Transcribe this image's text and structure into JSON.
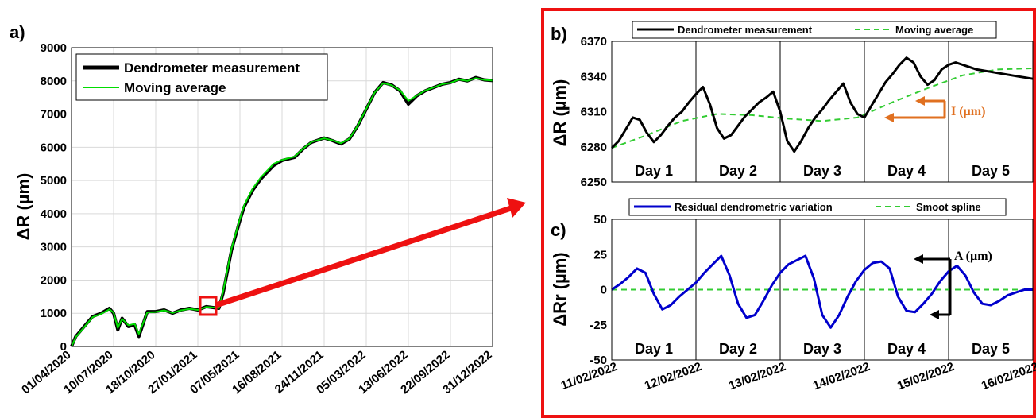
{
  "panel_labels": {
    "a": "a)",
    "b": "b)",
    "c": "c)"
  },
  "annotations": {
    "b_text": "I (µm)",
    "c_text": "A (µm)"
  },
  "colors": {
    "measurement": "#000000",
    "moving_average": "#00dd00",
    "moving_average_b": "#33cc33",
    "residual": "#0000cc",
    "spline": "#33cc33",
    "highlight": "#ee1111",
    "annotation_b": "#e07020"
  },
  "chart_data": [
    {
      "id": "a",
      "type": "line",
      "ylabel": "ΔR (µm)",
      "ylim": [
        0,
        9000
      ],
      "yticks": [
        0,
        1000,
        2000,
        3000,
        4000,
        5000,
        6000,
        7000,
        8000,
        9000
      ],
      "xtick_labels": [
        "01/04/2020",
        "10/07/2020",
        "18/10/2020",
        "27/01/2021",
        "07/05/2021",
        "16/08/2021",
        "24/11/2021",
        "05/03/2022",
        "13/06/2022",
        "22/09/2022",
        "31/12/2022"
      ],
      "grid": true,
      "legend": "top-left",
      "series": [
        {
          "name": "Dendrometer measurement",
          "x": [
            0,
            0.1,
            0.3,
            0.5,
            0.7,
            0.9,
            1.0,
            1.1,
            1.2,
            1.35,
            1.5,
            1.6,
            1.8,
            2.0,
            2.2,
            2.4,
            2.6,
            2.8,
            3.0,
            3.2,
            3.5,
            3.6,
            3.8,
            4.0,
            4.1,
            4.3,
            4.5,
            4.8,
            5.0,
            5.3,
            5.5,
            5.7,
            6.0,
            6.2,
            6.4,
            6.6,
            6.8,
            7.0,
            7.2,
            7.4,
            7.6,
            7.8,
            8.0,
            8.2,
            8.4,
            8.6,
            8.8,
            9.0,
            9.2,
            9.4,
            9.6,
            9.8,
            10.0
          ],
          "y": [
            0,
            300,
            600,
            900,
            1000,
            1150,
            1000,
            500,
            850,
            600,
            650,
            300,
            1050,
            1050,
            1100,
            1000,
            1100,
            1150,
            1100,
            1200,
            1150,
            1600,
            2900,
            3800,
            4200,
            4700,
            5050,
            5450,
            5600,
            5700,
            5950,
            6150,
            6280,
            6200,
            6100,
            6250,
            6650,
            7150,
            7650,
            7950,
            7880,
            7700,
            7300,
            7550,
            7700,
            7800,
            7900,
            7950,
            8050,
            8000,
            8100,
            8030,
            8010
          ]
        },
        {
          "name": "Moving average",
          "x": [
            0,
            0.1,
            0.3,
            0.5,
            0.7,
            0.9,
            1.0,
            1.1,
            1.2,
            1.35,
            1.5,
            1.6,
            1.8,
            2.0,
            2.2,
            2.4,
            2.6,
            2.8,
            3.0,
            3.2,
            3.5,
            3.6,
            3.8,
            4.0,
            4.1,
            4.3,
            4.5,
            4.8,
            5.0,
            5.3,
            5.5,
            5.7,
            6.0,
            6.2,
            6.4,
            6.6,
            6.8,
            7.0,
            7.2,
            7.4,
            7.6,
            7.8,
            8.0,
            8.2,
            8.4,
            8.6,
            8.8,
            9.0,
            9.2,
            9.4,
            9.6,
            9.8,
            10.0
          ],
          "y": [
            0,
            280,
            580,
            880,
            980,
            1120,
            1020,
            560,
            830,
            640,
            680,
            380,
            1030,
            1040,
            1090,
            1010,
            1090,
            1130,
            1100,
            1190,
            1160,
            1650,
            2950,
            3850,
            4250,
            4750,
            5100,
            5500,
            5620,
            5720,
            5960,
            6160,
            6270,
            6210,
            6120,
            6260,
            6660,
            7160,
            7650,
            7930,
            7870,
            7720,
            7400,
            7560,
            7710,
            7800,
            7900,
            7940,
            8040,
            8000,
            8080,
            8030,
            8010
          ]
        }
      ]
    },
    {
      "id": "b",
      "type": "line",
      "ylabel": "ΔR (µm)",
      "ylim": [
        6250,
        6370
      ],
      "yticks": [
        6250,
        6280,
        6310,
        6340,
        6370
      ],
      "day_labels": [
        "Day 1",
        "Day 2",
        "Day 3",
        "Day 4",
        "Day 5"
      ],
      "legend": "top",
      "series": [
        {
          "name": "Dendrometer measurement",
          "x": [
            0,
            0.1,
            0.2,
            0.3,
            0.4,
            0.5,
            0.6,
            0.7,
            0.8,
            0.9,
            1.0,
            1.1,
            1.2,
            1.3,
            1.4,
            1.5,
            1.6,
            1.7,
            1.8,
            1.9,
            2.0,
            2.1,
            2.2,
            2.3,
            2.4,
            2.5,
            2.6,
            2.7,
            2.8,
            2.9,
            3.0,
            3.1,
            3.2,
            3.3,
            3.4,
            3.5,
            3.6,
            3.7,
            3.8,
            3.9,
            4.0,
            4.1,
            4.2,
            4.3,
            4.4,
            4.5,
            4.6,
            4.7,
            4.8,
            4.9,
            5.0,
            5.1,
            5.2,
            5.3,
            5.4,
            5.5,
            5.6,
            5.7,
            5.8,
            5.9,
            6.0
          ],
          "y": [
            6279,
            6285,
            6295,
            6305,
            6303,
            6292,
            6284,
            6290,
            6298,
            6305,
            6310,
            6318,
            6325,
            6331,
            6316,
            6296,
            6287,
            6290,
            6298,
            6306,
            6312,
            6318,
            6322,
            6327,
            6310,
            6285,
            6276,
            6285,
            6296,
            6305,
            6312,
            6320,
            6327,
            6334,
            6318,
            6308,
            6305,
            6315,
            6325,
            6335,
            6342,
            6350,
            6356,
            6352,
            6340,
            6333,
            6337,
            6346,
            6350,
            6352,
            6350,
            6348,
            6346,
            6345,
            6344,
            6343,
            6342,
            6341,
            6340,
            6339,
            6338
          ]
        },
        {
          "name": "Moving average",
          "x": [
            0,
            0.5,
            1.0,
            1.5,
            2.0,
            2.5,
            3.0,
            3.5,
            4.0,
            4.5,
            5.0,
            5.5,
            6.0
          ],
          "y": [
            6279,
            6290,
            6302,
            6308,
            6307,
            6304,
            6302,
            6305,
            6318,
            6330,
            6341,
            6346,
            6347
          ]
        }
      ]
    },
    {
      "id": "c",
      "type": "line",
      "ylabel": "ΔRr (µm)",
      "ylim": [
        -50,
        50
      ],
      "yticks": [
        -50,
        -25,
        0,
        25,
        50
      ],
      "xtick_labels": [
        "11/02/2022",
        "12/02/2022",
        "13/02/2022",
        "14/02/2022",
        "15/02/2022",
        "16/02/2022"
      ],
      "day_labels": [
        "Day 1",
        "Day 2",
        "Day 3",
        "Day 4",
        "Day 5"
      ],
      "legend": "top",
      "series": [
        {
          "name": "Residual dendrometric variation",
          "x": [
            0,
            0.1,
            0.2,
            0.3,
            0.4,
            0.5,
            0.6,
            0.7,
            0.8,
            0.9,
            1.0,
            1.1,
            1.2,
            1.3,
            1.4,
            1.5,
            1.6,
            1.7,
            1.8,
            1.9,
            2.0,
            2.1,
            2.2,
            2.3,
            2.4,
            2.5,
            2.6,
            2.7,
            2.8,
            2.9,
            3.0,
            3.1,
            3.2,
            3.3,
            3.4,
            3.5,
            3.6,
            3.7,
            3.8,
            3.9,
            4.0,
            4.1,
            4.2,
            4.3,
            4.4,
            4.5,
            4.6,
            4.7,
            4.8,
            4.9,
            5.0
          ],
          "y": [
            0,
            4,
            9,
            15,
            12,
            -3,
            -14,
            -11,
            -5,
            0,
            5,
            12,
            18,
            24,
            10,
            -10,
            -20,
            -18,
            -8,
            3,
            12,
            18,
            21,
            24,
            8,
            -18,
            -27,
            -18,
            -5,
            6,
            14,
            19,
            20,
            15,
            -5,
            -15,
            -16,
            -10,
            -3,
            6,
            13,
            17,
            10,
            -2,
            -10,
            -11,
            -8,
            -4,
            -2,
            0,
            0
          ]
        },
        {
          "name": "Smoot spline",
          "x": [
            0,
            5
          ],
          "y": [
            0,
            0
          ]
        }
      ]
    }
  ]
}
